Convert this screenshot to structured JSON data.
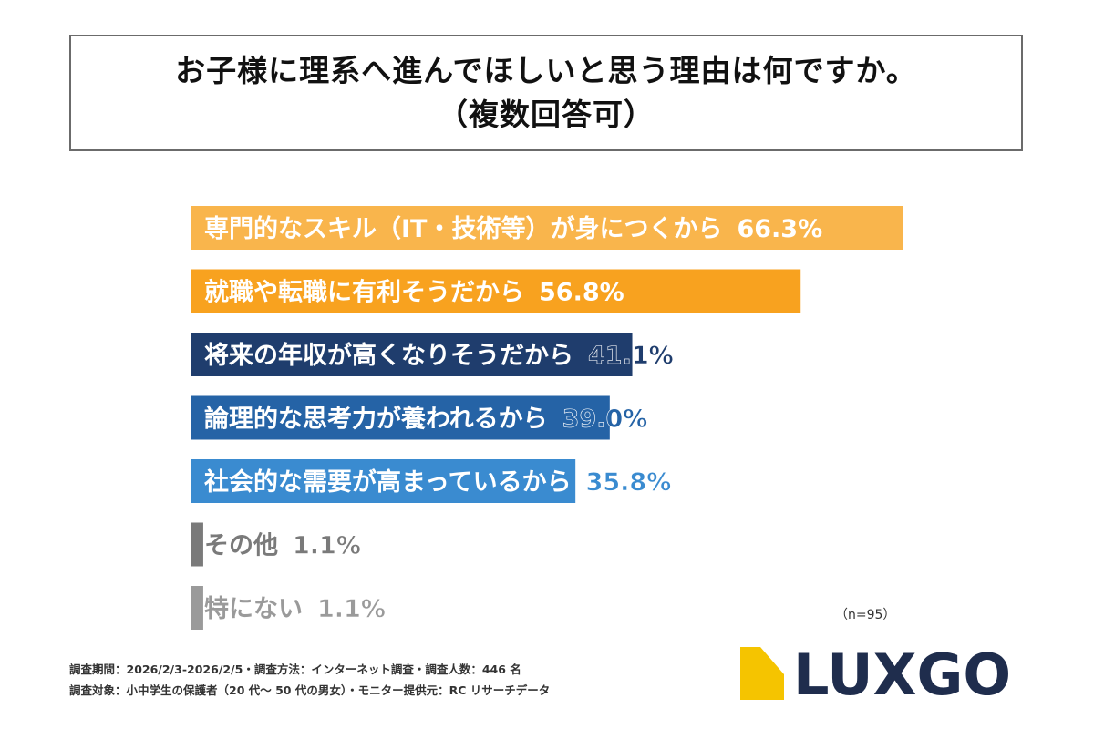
{
  "title": {
    "line1": "お子様に理系へ進んでほしいと思う理由は何ですか。",
    "line2": "（複数回答可）"
  },
  "chart_data": {
    "type": "bar",
    "orientation": "horizontal",
    "categories": [
      "専門的なスキル（IT・技術等）が身につくから",
      "就職や転職に有利そうだから",
      "将来の年収が高くなりそうだから",
      "論理的な思考力が養われるから",
      "社会的な需要が高まっているから",
      "その他",
      "特にない"
    ],
    "values": [
      66.3,
      56.8,
      41.1,
      39.0,
      35.8,
      1.1,
      1.1
    ],
    "value_labels": [
      "66.3%",
      "56.8%",
      "41.1%",
      "39.0%",
      "35.8%",
      "1.1%",
      "1.1%"
    ],
    "colors": [
      "#f9b54c",
      "#f8a21f",
      "#1f3d6d",
      "#2563a6",
      "#3a8bd0",
      "#7a7a7a",
      "#9a9a9a"
    ],
    "value_colors": [
      "#ffffff",
      "#ffffff",
      "#1f3d6d",
      "#2563a6",
      "#3a8bd0",
      "#7a7a7a",
      "#9a9a9a"
    ],
    "label_colors": [
      "#ffffff",
      "#ffffff",
      "#ffffff",
      "#ffffff",
      "#ffffff",
      "#7a7a7a",
      "#9a9a9a"
    ],
    "xlim": [
      0,
      66.3
    ],
    "grid": false,
    "legend": "none"
  },
  "sample_note": "（n=95）",
  "footer": {
    "line1": "調査期間：2026/2/3-2026/2/5・調査方法：インターネット調査・調査人数：446 名",
    "line2": "調査対象：小中学生の保護者（20 代〜 50 代の男女）・モニター提供元：RC リサーチデータ"
  },
  "logo": {
    "text": "LUXGO",
    "text_color": "#1f2d4d",
    "accent_color": "#f5c400"
  }
}
